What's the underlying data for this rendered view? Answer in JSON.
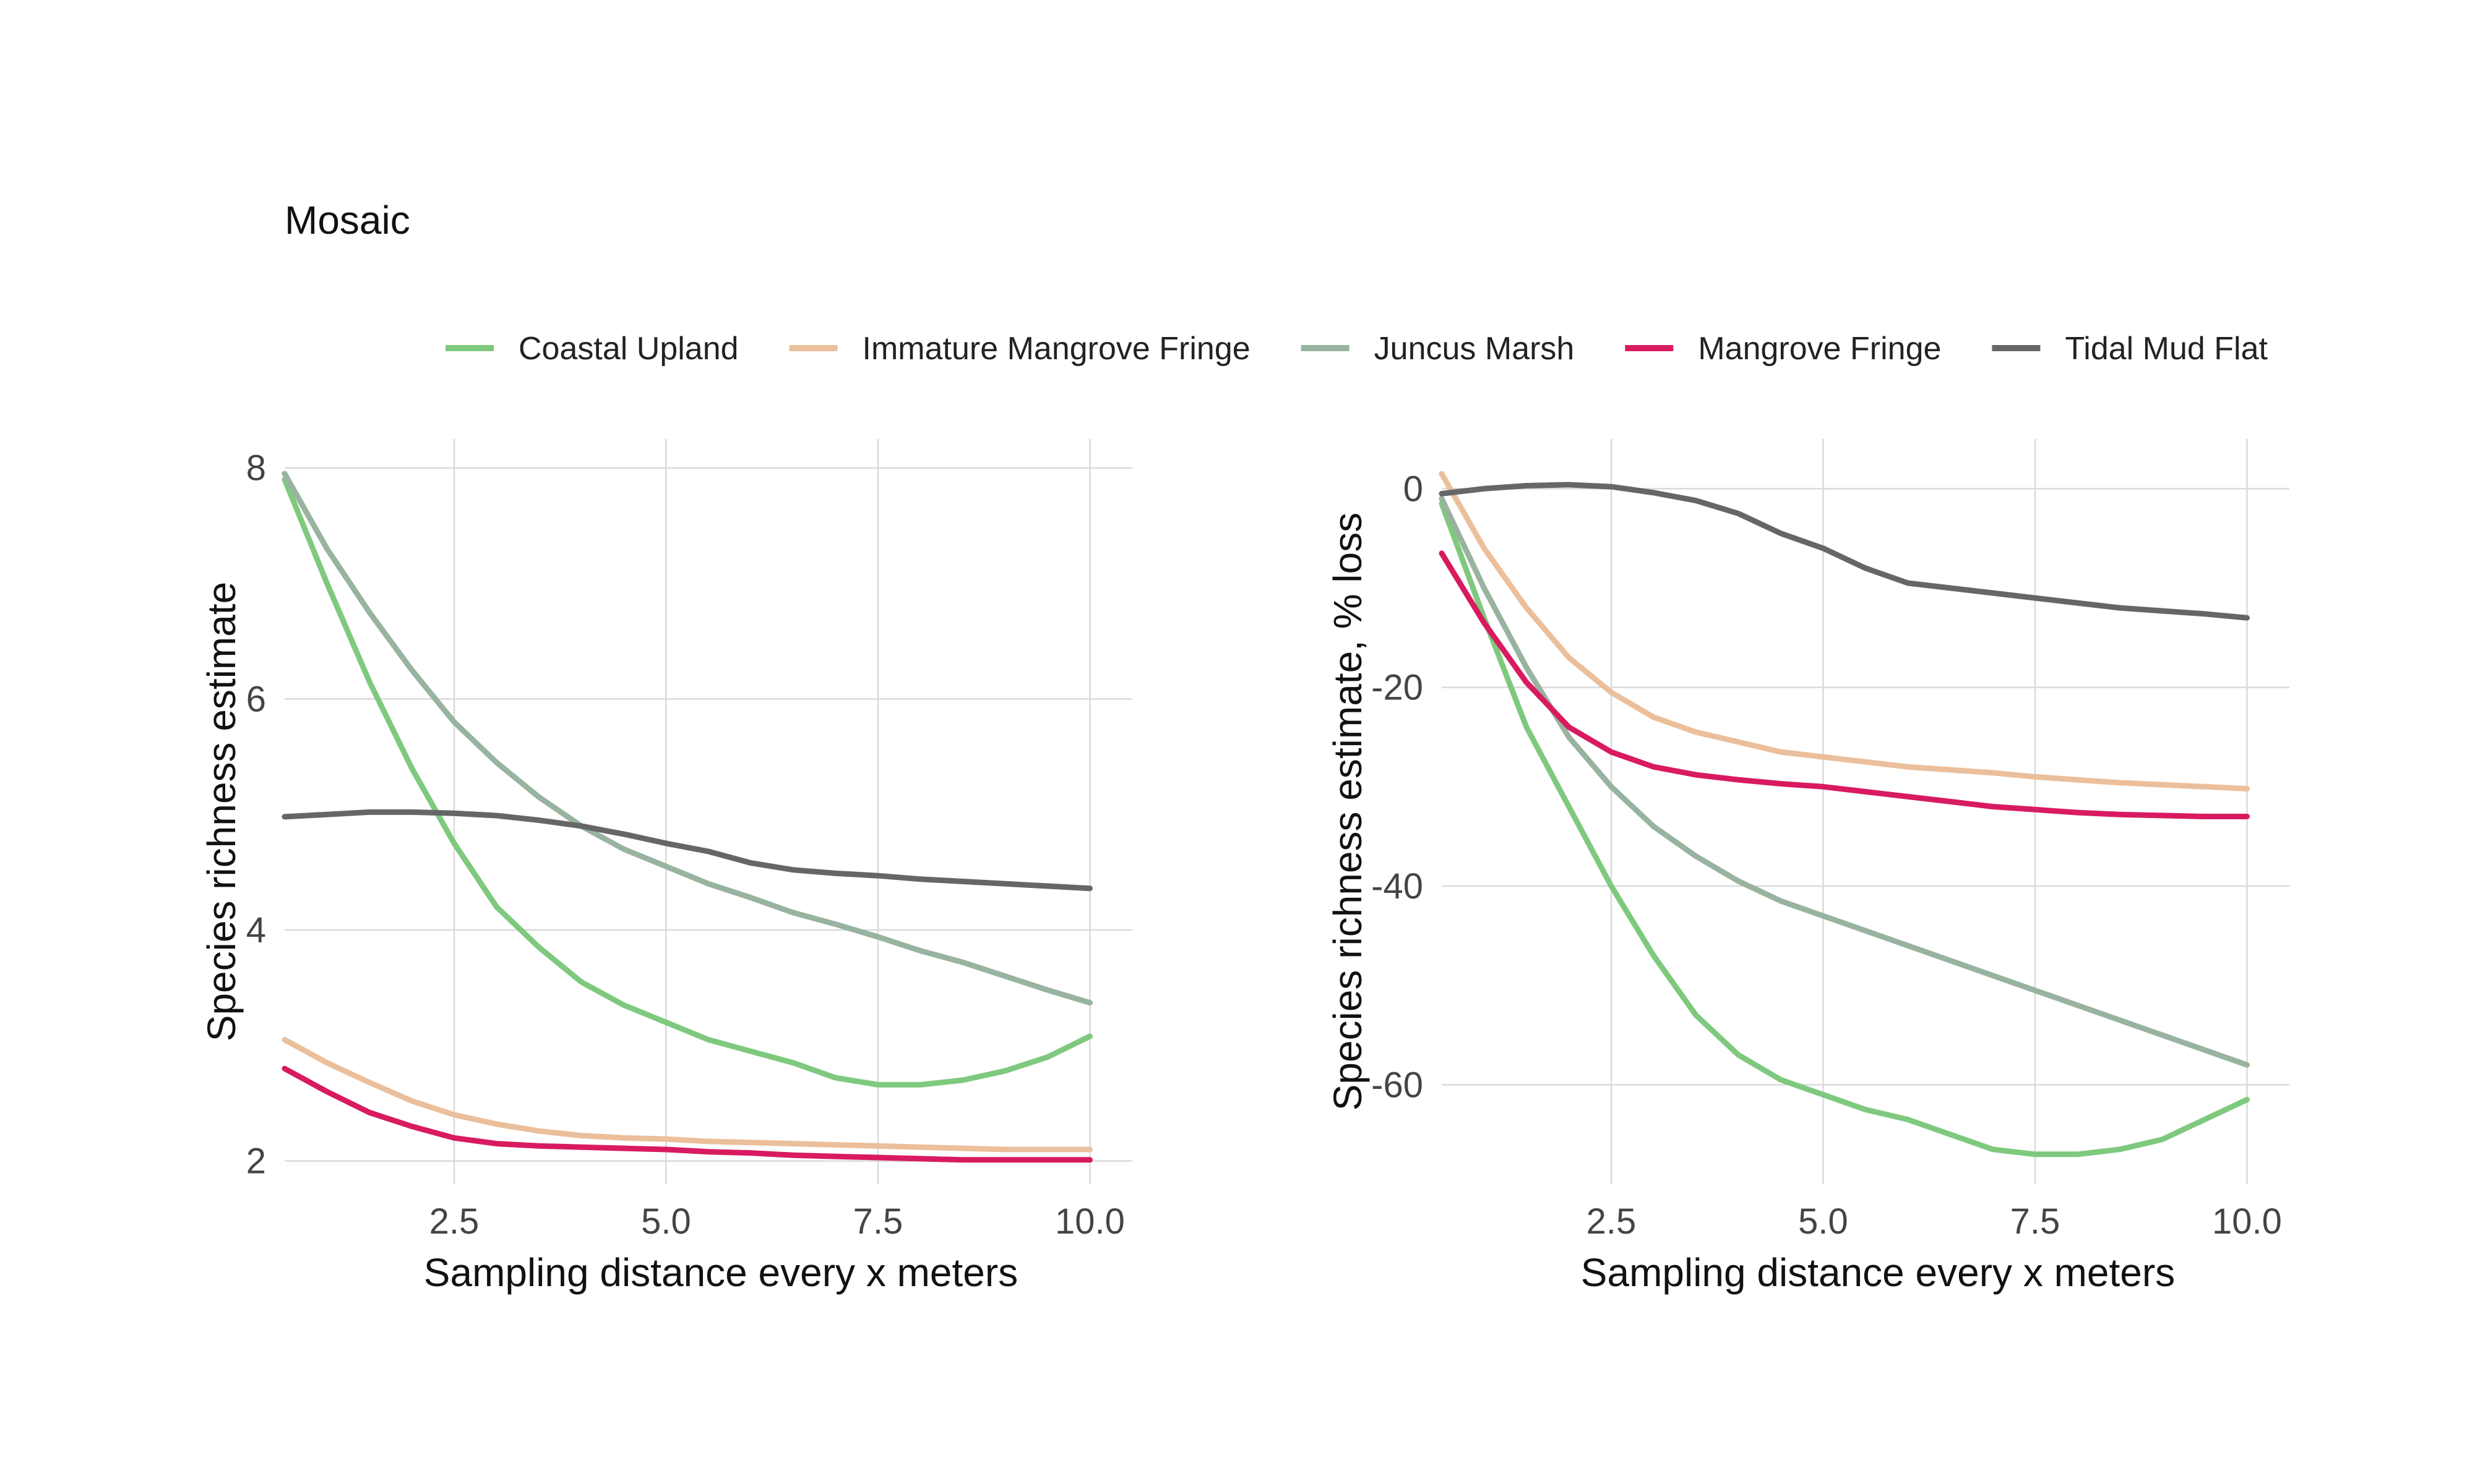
{
  "figure_title": "Mosaic",
  "colors": {
    "Coastal Upland": "#7fc97f",
    "Immature Mangrove Fringe": "#ebbf9b",
    "Juncus Marsh": "#98b39f",
    "Mangrove Fringe": "#d81b60",
    "Tidal Mud Flat": "#666666"
  },
  "legend": {
    "position": "top",
    "items": [
      "Coastal Upland",
      "Immature Mangrove Fringe",
      "Juncus Marsh",
      "Mangrove Fringe",
      "Tidal Mud Flat"
    ]
  },
  "chart_data": [
    {
      "type": "line",
      "title": "",
      "xlabel": "Sampling distance every x meters",
      "ylabel": "Species richness estimate",
      "xlim": [
        0.5,
        10.5
      ],
      "ylim": [
        1.8,
        8.25
      ],
      "xticks": [
        2.5,
        5.0,
        7.5,
        10.0
      ],
      "xtick_labels": [
        "2.5",
        "5.0",
        "7.5",
        "10.0"
      ],
      "yticks": [
        2,
        4,
        6,
        8
      ],
      "ytick_labels": [
        "2",
        "4",
        "6",
        "8"
      ],
      "grid": true,
      "series": [
        {
          "name": "Coastal Upland",
          "x": [
            0.5,
            1,
            1.5,
            2,
            2.5,
            3,
            3.5,
            4,
            4.5,
            5,
            5.5,
            6,
            6.5,
            7,
            7.5,
            8,
            8.5,
            9,
            9.5,
            10
          ],
          "y": [
            7.9,
            7.0,
            6.15,
            5.4,
            4.75,
            4.2,
            3.85,
            3.55,
            3.35,
            3.2,
            3.05,
            2.95,
            2.85,
            2.72,
            2.66,
            2.66,
            2.7,
            2.78,
            2.9,
            3.08
          ]
        },
        {
          "name": "Immature Mangrove Fringe",
          "x": [
            0.5,
            1,
            1.5,
            2,
            2.5,
            3,
            3.5,
            4,
            4.5,
            5,
            5.5,
            6,
            6.5,
            7,
            7.5,
            8,
            8.5,
            9,
            9.5,
            10
          ],
          "y": [
            3.05,
            2.85,
            2.68,
            2.52,
            2.4,
            2.32,
            2.26,
            2.22,
            2.2,
            2.19,
            2.17,
            2.16,
            2.15,
            2.14,
            2.13,
            2.12,
            2.11,
            2.1,
            2.1,
            2.1
          ]
        },
        {
          "name": "Juncus Marsh",
          "x": [
            0.5,
            1,
            1.5,
            2,
            2.5,
            3,
            3.5,
            4,
            4.5,
            5,
            5.5,
            6,
            6.5,
            7,
            7.5,
            8,
            8.5,
            9,
            9.5,
            10
          ],
          "y": [
            7.95,
            7.3,
            6.75,
            6.25,
            5.8,
            5.45,
            5.15,
            4.9,
            4.7,
            4.55,
            4.4,
            4.28,
            4.15,
            4.05,
            3.94,
            3.82,
            3.72,
            3.6,
            3.48,
            3.37
          ]
        },
        {
          "name": "Mangrove Fringe",
          "x": [
            0.5,
            1,
            1.5,
            2,
            2.5,
            3,
            3.5,
            4,
            4.5,
            5,
            5.5,
            6,
            6.5,
            7,
            7.5,
            8,
            8.5,
            9,
            9.5,
            10
          ],
          "y": [
            2.8,
            2.6,
            2.42,
            2.3,
            2.2,
            2.15,
            2.13,
            2.12,
            2.11,
            2.1,
            2.08,
            2.07,
            2.05,
            2.04,
            2.03,
            2.02,
            2.01,
            2.01,
            2.01,
            2.01
          ]
        },
        {
          "name": "Tidal Mud Flat",
          "x": [
            0.5,
            1,
            1.5,
            2,
            2.5,
            3,
            3.5,
            4,
            4.5,
            5,
            5.5,
            6,
            6.5,
            7,
            7.5,
            8,
            8.5,
            9,
            9.5,
            10
          ],
          "y": [
            4.98,
            5.0,
            5.02,
            5.02,
            5.01,
            4.99,
            4.95,
            4.9,
            4.83,
            4.75,
            4.68,
            4.58,
            4.52,
            4.49,
            4.47,
            4.44,
            4.42,
            4.4,
            4.38,
            4.36
          ]
        }
      ]
    },
    {
      "type": "line",
      "title": "",
      "xlabel": "Sampling distance every x meters",
      "ylabel": "Species richness estimate, % loss",
      "xlim": [
        0.5,
        10.5
      ],
      "ylim": [
        -70,
        5
      ],
      "xticks": [
        2.5,
        5.0,
        7.5,
        10.0
      ],
      "xtick_labels": [
        "2.5",
        "5.0",
        "7.5",
        "10.0"
      ],
      "yticks": [
        0,
        -20,
        -40,
        -60
      ],
      "ytick_labels": [
        "0",
        "-20",
        "-40",
        "-60"
      ],
      "grid": true,
      "series": [
        {
          "name": "Coastal Upland",
          "x": [
            0.5,
            1,
            1.5,
            2,
            2.5,
            3,
            3.5,
            4,
            4.5,
            5,
            5.5,
            6,
            6.5,
            7,
            7.5,
            8,
            8.5,
            9,
            9.5,
            10
          ],
          "y": [
            -1.5,
            -13,
            -24,
            -32,
            -40,
            -47,
            -53,
            -57,
            -59.5,
            -61,
            -62.5,
            -63.5,
            -65,
            -66.5,
            -67,
            -67,
            -66.5,
            -65.5,
            -63.5,
            -61.5
          ]
        },
        {
          "name": "Immature Mangrove Fringe",
          "x": [
            0.5,
            1,
            1.5,
            2,
            2.5,
            3,
            3.5,
            4,
            4.5,
            5,
            5.5,
            6,
            6.5,
            7,
            7.5,
            8,
            8.5,
            9,
            9.5,
            10
          ],
          "y": [
            1.5,
            -6,
            -12,
            -17,
            -20.5,
            -23,
            -24.5,
            -25.5,
            -26.5,
            -27,
            -27.5,
            -28,
            -28.3,
            -28.6,
            -29,
            -29.3,
            -29.6,
            -29.8,
            -30,
            -30.2
          ]
        },
        {
          "name": "Juncus Marsh",
          "x": [
            0.5,
            1,
            1.5,
            2,
            2.5,
            3,
            3.5,
            4,
            4.5,
            5,
            5.5,
            6,
            6.5,
            7,
            7.5,
            8,
            8.5,
            9,
            9.5,
            10
          ],
          "y": [
            -1,
            -10,
            -18,
            -25,
            -30,
            -34,
            -37,
            -39.5,
            -41.5,
            -43,
            -44.5,
            -46,
            -47.5,
            -49,
            -50.5,
            -52,
            -53.5,
            -55,
            -56.5,
            -58
          ]
        },
        {
          "name": "Mangrove Fringe",
          "x": [
            0.5,
            1,
            1.5,
            2,
            2.5,
            3,
            3.5,
            4,
            4.5,
            5,
            5.5,
            6,
            6.5,
            7,
            7.5,
            8,
            8.5,
            9,
            9.5,
            10
          ],
          "y": [
            -6.5,
            -13.5,
            -19.5,
            -24,
            -26.5,
            -28,
            -28.8,
            -29.3,
            -29.7,
            -30,
            -30.5,
            -31,
            -31.5,
            -32,
            -32.3,
            -32.6,
            -32.8,
            -32.9,
            -33,
            -33
          ]
        },
        {
          "name": "Tidal Mud Flat",
          "x": [
            0.5,
            1,
            1.5,
            2,
            2.5,
            3,
            3.5,
            4,
            4.5,
            5,
            5.5,
            6,
            6.5,
            7,
            7.5,
            8,
            8.5,
            9,
            9.5,
            10
          ],
          "y": [
            -0.5,
            0,
            0.3,
            0.4,
            0.2,
            -0.4,
            -1.2,
            -2.5,
            -4.5,
            -6,
            -8,
            -9.5,
            -10,
            -10.5,
            -11,
            -11.5,
            -12,
            -12.3,
            -12.6,
            -13
          ]
        }
      ]
    }
  ]
}
